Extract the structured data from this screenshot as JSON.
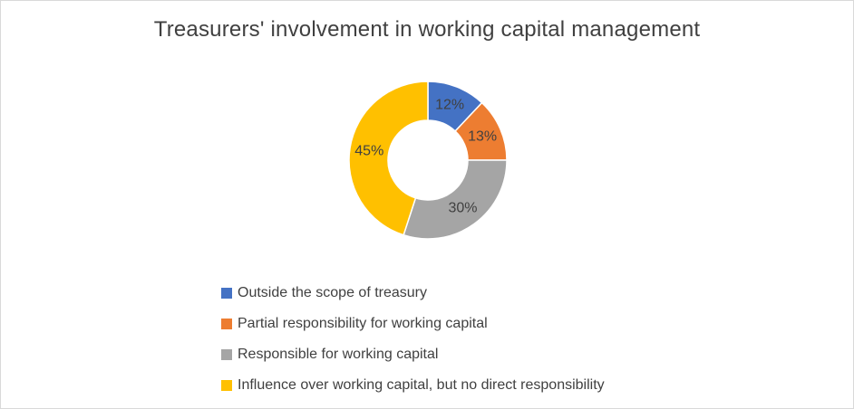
{
  "chart_data": {
    "type": "pie",
    "variant": "doughnut",
    "title": "Treasurers' involvement in working capital management",
    "categories": [
      "Outside the scope of treasury",
      "Partial responsibility for working capital",
      "Responsible for working capital",
      "Influence over working capital, but no direct responsibility"
    ],
    "values": [
      12,
      13,
      30,
      45
    ],
    "data_labels": [
      "12%",
      "13%",
      "30%",
      "45%"
    ],
    "colors": [
      "#4472C4",
      "#ED7D31",
      "#A5A5A5",
      "#FFC000"
    ],
    "legend_position": "bottom",
    "label_color": "#404040"
  }
}
